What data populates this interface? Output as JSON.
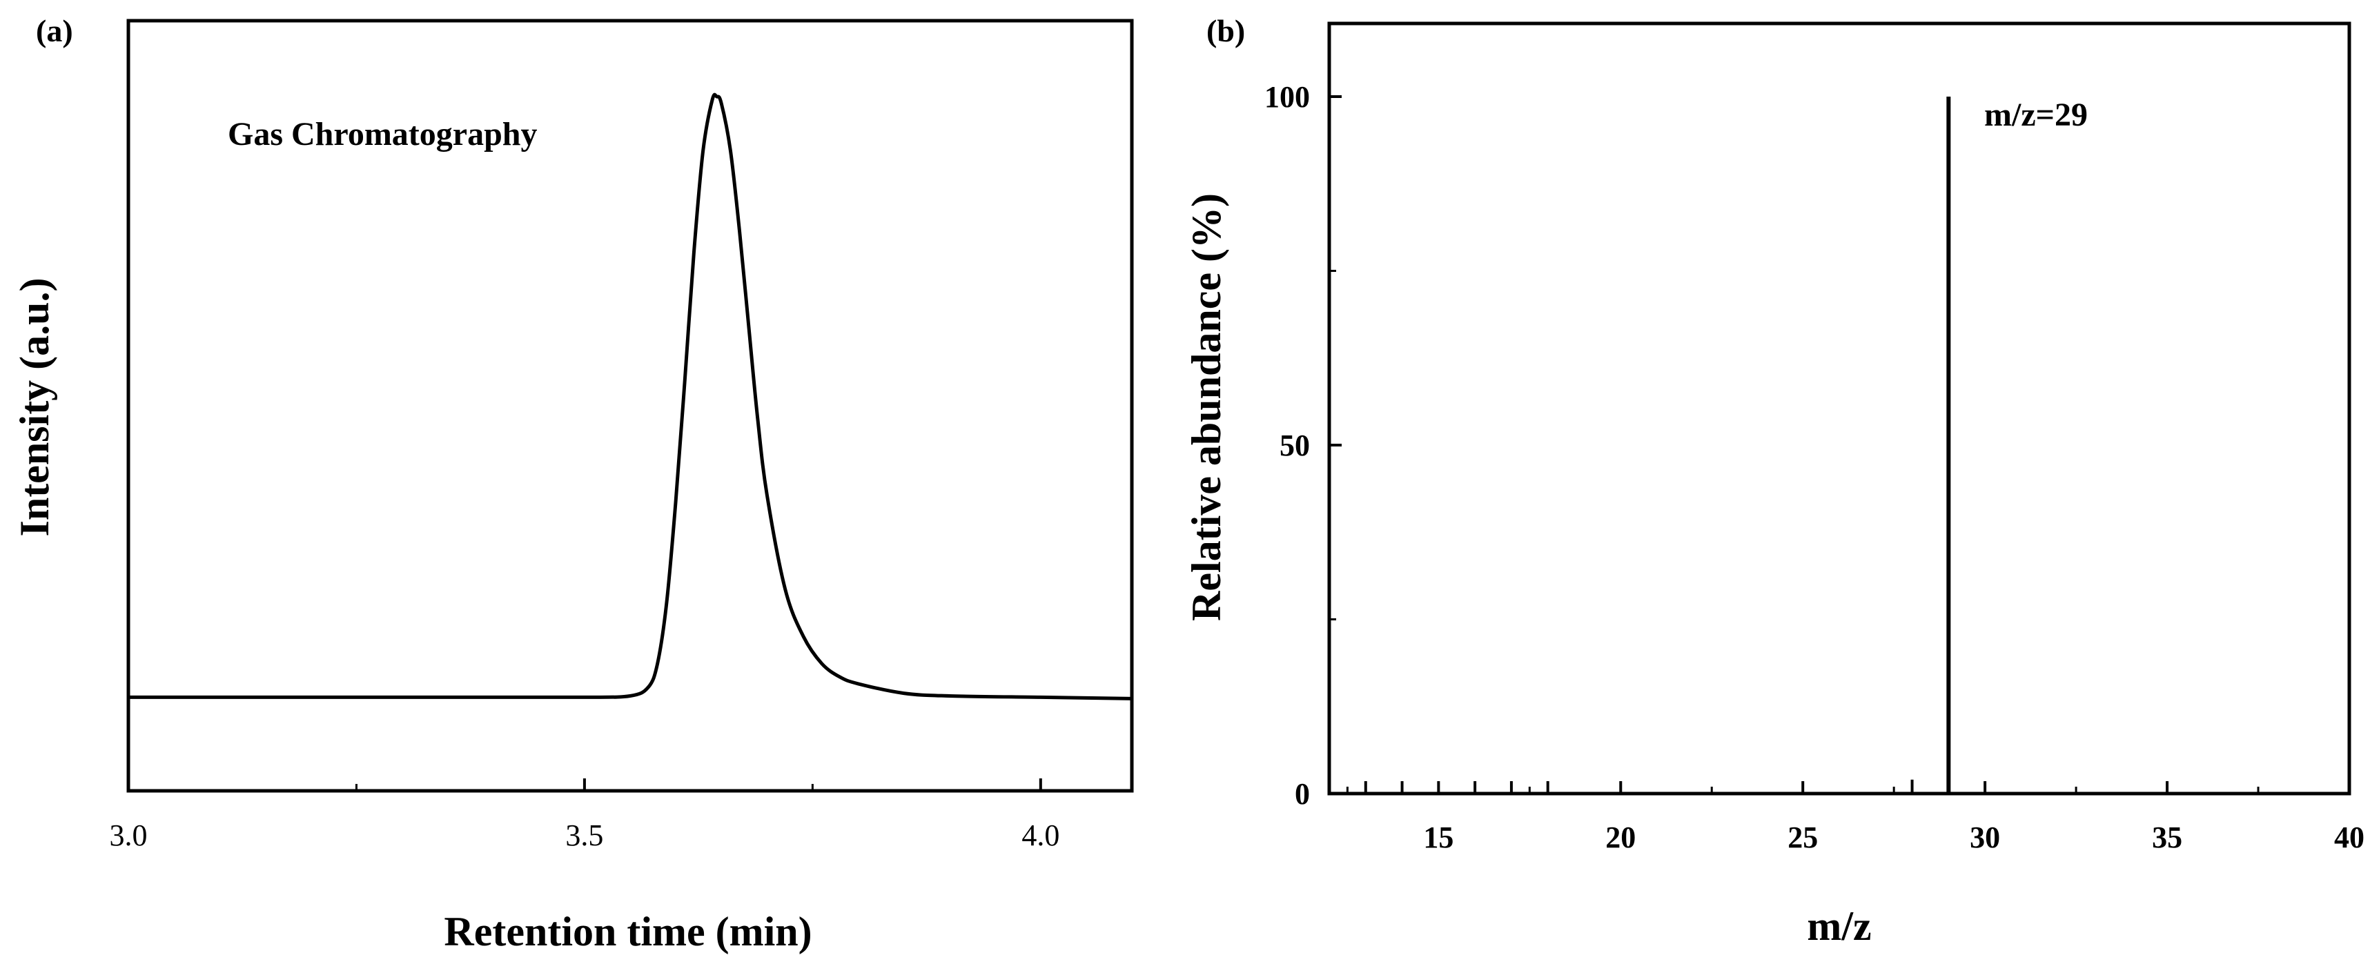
{
  "chart_data": [
    {
      "panel": "(a)",
      "type": "line",
      "title": "",
      "annotation": "Gas Chromatography",
      "xlabel": "Retention time (min)",
      "ylabel": "Intensity (a.u.)",
      "xlim": [
        3.0,
        4.1
      ],
      "ylim": [
        0,
        100
      ],
      "xticks": [
        3.0,
        3.5,
        4.0
      ],
      "xtick_labels": [
        "3.0",
        "3.5",
        "4.0"
      ],
      "minor_xticks": [
        3.25,
        3.75
      ],
      "peak": {
        "center": 3.645,
        "height": 100,
        "baseline": 11
      },
      "x": [
        3.0,
        3.2,
        3.4,
        3.5,
        3.55,
        3.57,
        3.58,
        3.59,
        3.6,
        3.61,
        3.62,
        3.63,
        3.64,
        3.645,
        3.65,
        3.66,
        3.67,
        3.68,
        3.69,
        3.7,
        3.72,
        3.74,
        3.76,
        3.78,
        3.8,
        3.85,
        3.9,
        4.0,
        4.1
      ],
      "y": [
        11,
        11,
        11,
        11,
        11.2,
        12.5,
        16,
        25,
        40,
        58,
        77,
        92,
        99.5,
        100,
        99,
        92,
        80,
        66,
        52,
        41,
        27,
        20,
        16,
        14,
        13,
        11.6,
        11.2,
        11,
        10.8
      ]
    },
    {
      "panel": "(b)",
      "type": "bar",
      "title": "",
      "annotation": "m/z=29",
      "xlabel": "m/z",
      "ylabel": "Relative abundance (%)",
      "xlim": [
        12,
        40
      ],
      "ylim": [
        0,
        110
      ],
      "xticks": [
        15,
        20,
        25,
        30,
        35,
        40
      ],
      "xtick_labels": [
        "15",
        "20",
        "25",
        "30",
        "35",
        "40"
      ],
      "yticks": [
        0,
        50,
        100
      ],
      "ytick_labels": [
        "0",
        "50",
        "100"
      ],
      "mz": [
        13,
        14,
        16,
        17,
        18,
        28,
        29
      ],
      "abundance": [
        1.5,
        1.0,
        1.5,
        0.5,
        1.5,
        2.0,
        100
      ]
    }
  ]
}
